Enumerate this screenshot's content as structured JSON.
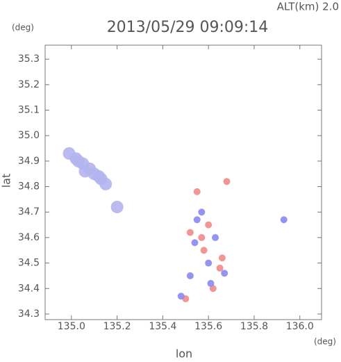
{
  "chart_data": {
    "type": "scatter",
    "title": "2013/05/29 09:09:14",
    "subtitle": "ALT(km) 2.0",
    "y_unit": "(deg)",
    "x_unit": "(deg)",
    "xlabel": "lon",
    "ylabel": "lat",
    "xlim": [
      134.885,
      136.095
    ],
    "ylim": [
      34.278,
      35.355
    ],
    "xticks": [
      {
        "value": 135.0,
        "label": "135.0"
      },
      135.2,
      135.4,
      135.6,
      135.8,
      {
        "value": 136.0,
        "label": "136.0"
      }
    ],
    "yticks": [
      34.3,
      34.4,
      34.5,
      34.6,
      34.7,
      34.8,
      34.9,
      {
        "value": 35.0,
        "label": "35.0"
      },
      35.1,
      35.2,
      35.3
    ],
    "series": [
      {
        "color": "#b4b4ee",
        "x": [
          134.99,
          135.02,
          135.05,
          135.03,
          135.08,
          135.06,
          135.1,
          135.12,
          135.13,
          135.15,
          135.2
        ],
        "y": [
          34.93,
          34.91,
          34.89,
          34.9,
          34.87,
          34.86,
          34.85,
          34.84,
          34.83,
          34.81,
          34.72
        ]
      },
      {
        "color": "#f08a8a",
        "x": [
          135.55,
          135.6,
          135.58,
          135.65,
          135.52,
          135.68,
          135.62,
          135.5,
          135.57,
          135.66
        ],
        "y": [
          34.78,
          34.65,
          34.55,
          34.48,
          34.62,
          34.82,
          34.4,
          34.36,
          34.6,
          34.52
        ]
      },
      {
        "color": "#8a8af0",
        "x": [
          135.57,
          135.54,
          135.6,
          135.63,
          135.52,
          135.67,
          135.93,
          135.48,
          135.55,
          135.61
        ],
        "y": [
          34.7,
          34.58,
          34.5,
          34.6,
          34.45,
          34.46,
          34.67,
          34.37,
          34.67,
          34.42
        ]
      }
    ]
  }
}
